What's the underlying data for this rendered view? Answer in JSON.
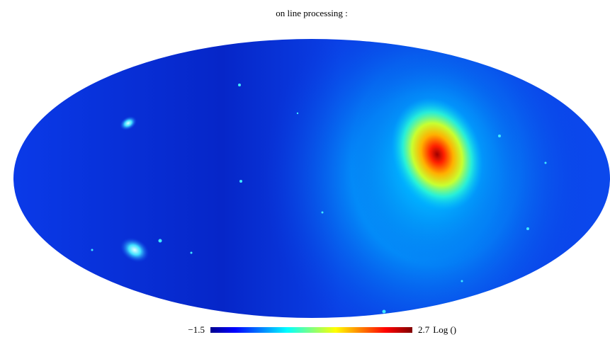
{
  "title": "on line processing :",
  "colorbar": {
    "ticks": [
      {
        "value": -1.5,
        "label": "−1.5"
      },
      {
        "value": 2.7,
        "label": "2.7"
      }
    ],
    "unit": "Log ()"
  }
}
